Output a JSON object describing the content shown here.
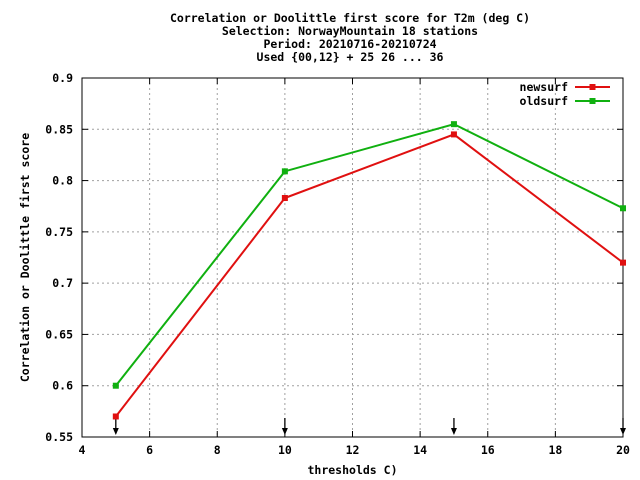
{
  "chart_data": {
    "type": "line",
    "title_lines": [
      "Correlation or Doolittle first score  for T2m (deg C)",
      "Selection: NorwayMountain     18 stations",
      "Period: 20210716-20210724",
      "Used {00,12} + 25 26 ... 36"
    ],
    "xlabel": "thresholds C)",
    "ylabel": "Correlation or Doolittle first score",
    "xlim": [
      4,
      20
    ],
    "ylim": [
      0.55,
      0.9
    ],
    "xticks": [
      4,
      6,
      8,
      10,
      12,
      14,
      16,
      18,
      20
    ],
    "xtick_labels": [
      "4",
      "6",
      "8",
      "10",
      "12",
      "14",
      "16",
      "18",
      "20"
    ],
    "yticks": [
      0.55,
      0.6,
      0.65,
      0.7,
      0.75,
      0.8,
      0.85,
      0.9
    ],
    "ytick_labels": [
      "0.55",
      "0.6",
      "0.65",
      "0.7",
      "0.75",
      "0.8",
      "0.85",
      "0.9"
    ],
    "grid": true,
    "legend_position": "top-right",
    "x": [
      5,
      10,
      15,
      20
    ],
    "series": [
      {
        "name": "newsurf",
        "color": "#e01010",
        "values": [
          0.57,
          0.783,
          0.845,
          0.72
        ]
      },
      {
        "name": "oldsurf",
        "color": "#10b010",
        "values": [
          0.6,
          0.809,
          0.855,
          0.773
        ]
      }
    ],
    "arrows_at_x": [
      5,
      10,
      15,
      20
    ]
  }
}
